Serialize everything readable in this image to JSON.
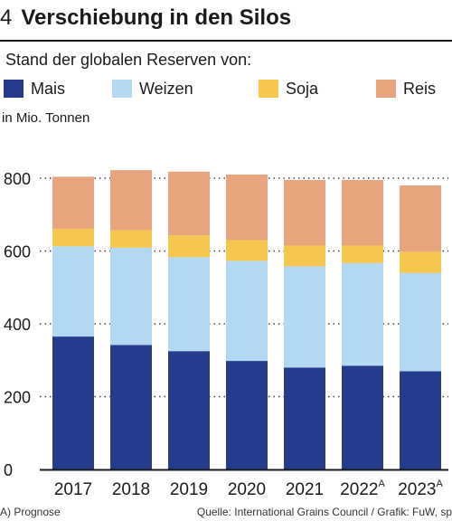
{
  "header": {
    "number": "4",
    "title": "Verschiebung in den Silos"
  },
  "subtitle": "Stand der globalen Reserven von:",
  "unit": "in Mio. Tonnen",
  "legend": [
    {
      "label": "Mais",
      "color": "#253c8c"
    },
    {
      "label": "Weizen",
      "color": "#b3d9f2"
    },
    {
      "label": "Soja",
      "color": "#f5c74e"
    },
    {
      "label": "Reis",
      "color": "#e8a57d"
    }
  ],
  "chart_data": {
    "type": "bar",
    "stacked": true,
    "categories": [
      "2017",
      "2018",
      "2019",
      "2020",
      "2021",
      "2022",
      "2023"
    ],
    "category_superscripts": [
      "",
      "",
      "",
      "",
      "",
      "A",
      "A"
    ],
    "series": [
      {
        "name": "Mais",
        "color": "#253c8c",
        "values": [
          365,
          342,
          325,
          298,
          280,
          285,
          270
        ]
      },
      {
        "name": "Weizen",
        "color": "#b3d9f2",
        "values": [
          248,
          267,
          258,
          275,
          278,
          282,
          270
        ]
      },
      {
        "name": "Soja",
        "color": "#f5c74e",
        "values": [
          48,
          48,
          60,
          57,
          57,
          48,
          58
        ]
      },
      {
        "name": "Reis",
        "color": "#e8a57d",
        "values": [
          143,
          165,
          175,
          180,
          180,
          180,
          182
        ]
      }
    ],
    "yticks": [
      0,
      200,
      400,
      600,
      800
    ],
    "ylim": [
      0,
      830
    ],
    "ylabel": "in Mio. Tonnen",
    "grid": "dotted horizontal"
  },
  "footer": {
    "note": "A) Prognose",
    "source": "Quelle: International Grains Council / Grafik: FuW, sp"
  }
}
